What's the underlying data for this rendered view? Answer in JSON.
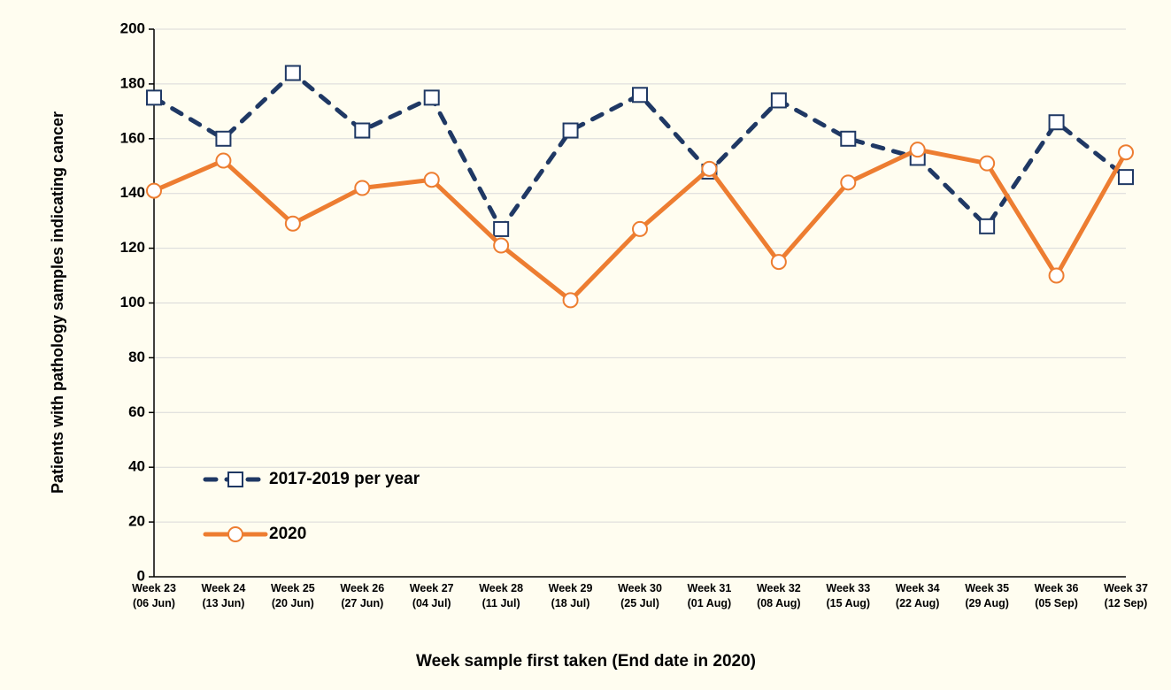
{
  "chart_data": {
    "type": "line",
    "x_label": "Week sample first taken (End date in 2020)",
    "y_label": "Patients with pathology samples indicating  cancer",
    "categories": [
      "Week 23\n(06 Jun)",
      "Week 24\n(13 Jun)",
      "Week 25\n(20 Jun)",
      "Week 26\n(27 Jun)",
      "Week 27\n(04 Jul)",
      "Week 28\n(11 Jul)",
      "Week 29\n(18 Jul)",
      "Week 30\n(25 Jul)",
      "Week 31\n(01 Aug)",
      "Week 32\n(08 Aug)",
      "Week 33\n(15 Aug)",
      "Week 34\n(22 Aug)",
      "Week 35\n(29 Aug)",
      "Week 36\n(05 Sep)",
      "Week 37\n(12 Sep)"
    ],
    "series": [
      {
        "name": "2017-2019 per year",
        "color": "#1f3864",
        "dashed": true,
        "marker": "square",
        "values": [
          175,
          160,
          184,
          163,
          175,
          127,
          163,
          176,
          148,
          174,
          160,
          153,
          128,
          166,
          146
        ]
      },
      {
        "name": "2020",
        "color": "#ed7d31",
        "dashed": false,
        "marker": "circle",
        "values": [
          141,
          152,
          129,
          142,
          145,
          121,
          101,
          127,
          149,
          115,
          144,
          156,
          151,
          110,
          155
        ]
      }
    ],
    "ylim": [
      0,
      200
    ],
    "yticks": [
      0,
      20,
      40,
      60,
      80,
      100,
      120,
      140,
      160,
      180,
      200
    ],
    "grid": true,
    "legend": "lower left"
  }
}
